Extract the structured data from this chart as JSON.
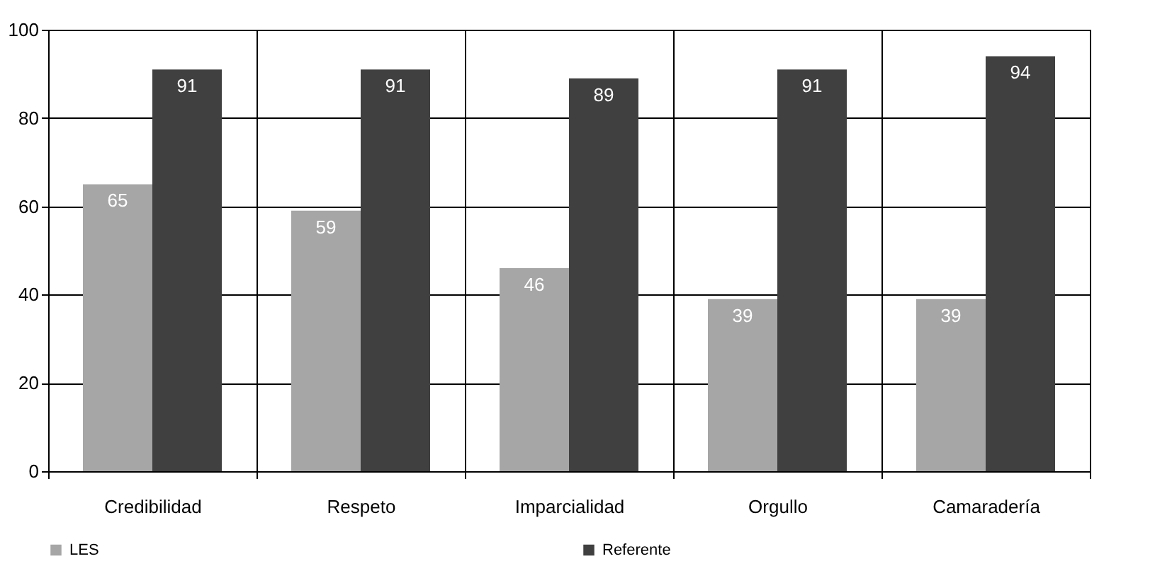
{
  "chart_data": {
    "type": "bar",
    "categories": [
      "Credibilidad",
      "Respeto",
      "Imparcialidad",
      "Orgullo",
      "Camaradería"
    ],
    "series": [
      {
        "name": "LES",
        "color": "#a6a6a6",
        "values": [
          65,
          59,
          46,
          39,
          39
        ]
      },
      {
        "name": "Referente",
        "color": "#404040",
        "values": [
          91,
          91,
          89,
          91,
          94
        ]
      }
    ],
    "ylim": [
      0,
      100
    ],
    "yticks": [
      0,
      20,
      40,
      60,
      80,
      100
    ],
    "grid": true,
    "legend": "bottom",
    "data_labels": true
  }
}
